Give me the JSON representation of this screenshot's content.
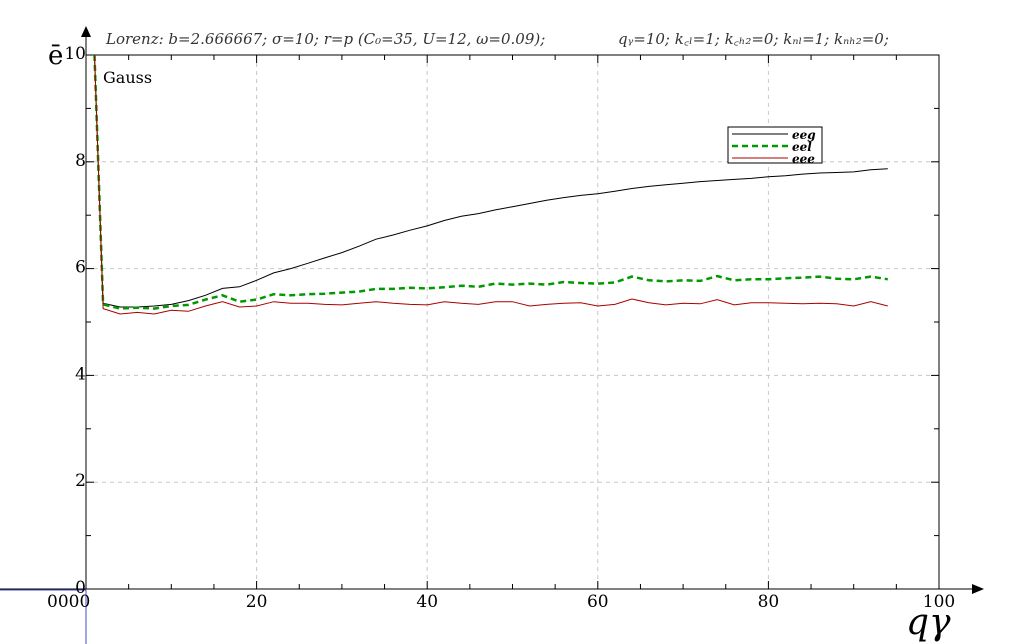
{
  "chart_data": {
    "type": "line",
    "title_left": "Lorenz: b=2.666667; σ=10; r=p (C₀=35, U=12, ω=0.09);",
    "title_right": "qᵧ=10; k꜀ₗ=1; k꜀ₕ₂=0; kₙₗ=1; kₙₕ₂=0;",
    "annotation": "Gauss",
    "xlabel": "qγ",
    "ylabel": "ē",
    "xlim": [
      0,
      100
    ],
    "ylim": [
      0,
      10
    ],
    "x_ticks": [
      20,
      40,
      60,
      80,
      100
    ],
    "x_origin_label": "0000",
    "y_ticks": [
      0,
      2,
      4,
      6,
      8,
      10
    ],
    "grid": true,
    "legend_position": "top-right",
    "x": [
      1,
      2,
      4,
      6,
      8,
      10,
      12,
      14,
      16,
      18,
      20,
      22,
      24,
      26,
      28,
      30,
      32,
      34,
      36,
      38,
      40,
      42,
      44,
      46,
      48,
      50,
      52,
      54,
      56,
      58,
      60,
      62,
      64,
      66,
      68,
      70,
      72,
      74,
      76,
      78,
      80,
      82,
      84,
      86,
      88,
      90,
      92,
      94
    ],
    "series": [
      {
        "name": "e_eg",
        "color": "#000000",
        "style": "solid",
        "values": [
          10,
          5.35,
          5.28,
          5.28,
          5.3,
          5.33,
          5.4,
          5.5,
          5.63,
          5.66,
          5.78,
          5.92,
          6.0,
          6.1,
          6.2,
          6.3,
          6.42,
          6.55,
          6.63,
          6.72,
          6.8,
          6.9,
          6.98,
          7.03,
          7.1,
          7.16,
          7.22,
          7.28,
          7.33,
          7.37,
          7.4,
          7.45,
          7.5,
          7.54,
          7.57,
          7.6,
          7.63,
          7.65,
          7.67,
          7.69,
          7.72,
          7.74,
          7.77,
          7.79,
          7.8,
          7.81,
          7.85,
          7.87
        ]
      },
      {
        "name": "e_el",
        "color": "#009900",
        "style": "dashed",
        "values": [
          10,
          5.33,
          5.25,
          5.27,
          5.25,
          5.3,
          5.32,
          5.42,
          5.5,
          5.38,
          5.42,
          5.52,
          5.5,
          5.52,
          5.53,
          5.55,
          5.57,
          5.62,
          5.62,
          5.64,
          5.63,
          5.65,
          5.68,
          5.66,
          5.72,
          5.7,
          5.72,
          5.7,
          5.75,
          5.73,
          5.72,
          5.74,
          5.85,
          5.78,
          5.76,
          5.78,
          5.77,
          5.86,
          5.78,
          5.8,
          5.8,
          5.82,
          5.83,
          5.85,
          5.81,
          5.8,
          5.85,
          5.8
        ]
      },
      {
        "name": "e_ee",
        "color": "#aa0000",
        "style": "solid",
        "values": [
          10,
          5.25,
          5.15,
          5.18,
          5.15,
          5.22,
          5.2,
          5.3,
          5.38,
          5.28,
          5.3,
          5.38,
          5.35,
          5.35,
          5.33,
          5.32,
          5.35,
          5.38,
          5.35,
          5.33,
          5.32,
          5.38,
          5.35,
          5.33,
          5.38,
          5.38,
          5.3,
          5.33,
          5.35,
          5.36,
          5.3,
          5.33,
          5.43,
          5.36,
          5.32,
          5.35,
          5.34,
          5.42,
          5.32,
          5.36,
          5.36,
          5.35,
          5.34,
          5.35,
          5.34,
          5.3,
          5.38,
          5.3
        ]
      }
    ]
  }
}
